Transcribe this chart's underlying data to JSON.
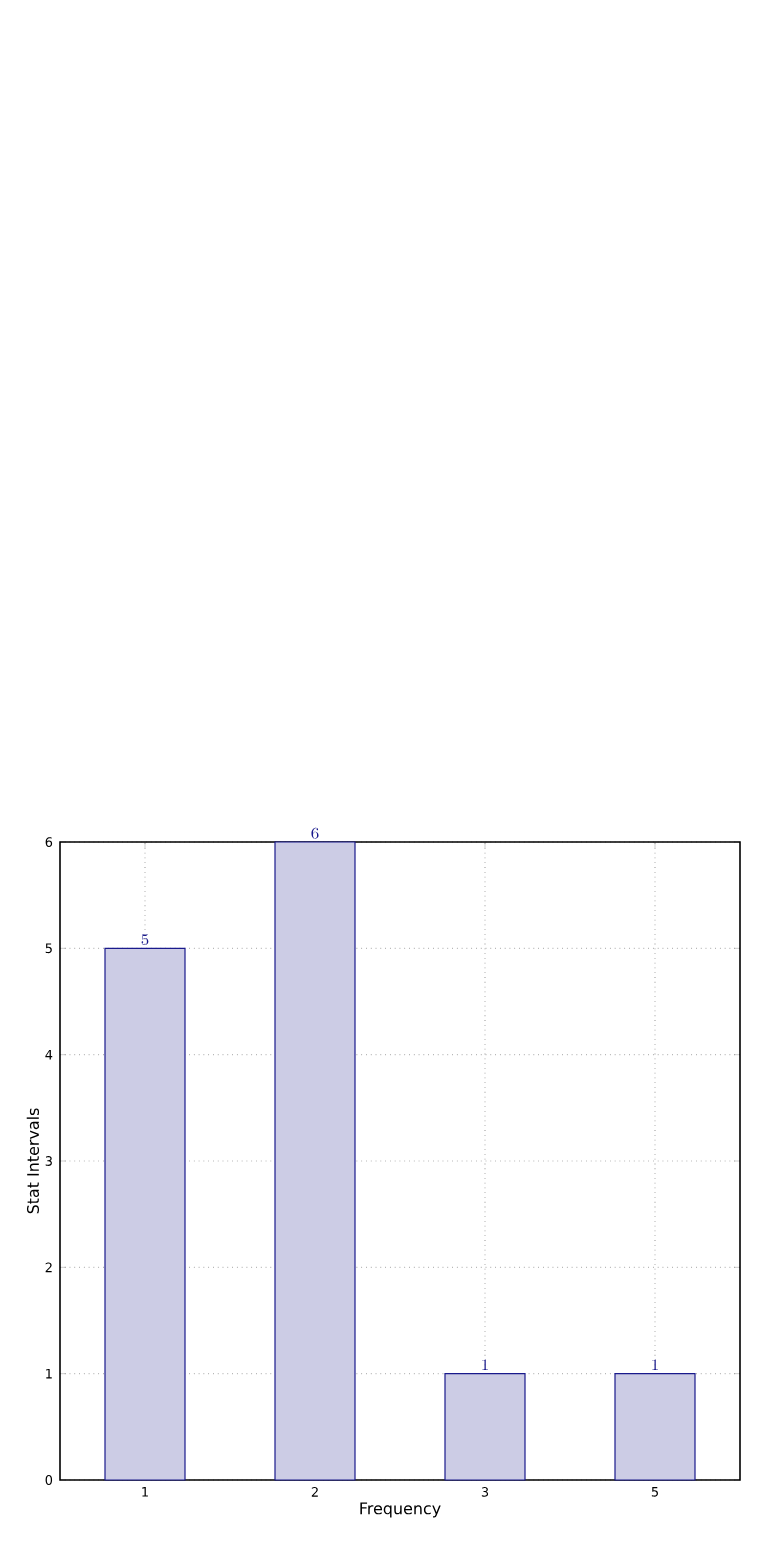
{
  "chart_data": {
    "type": "bar",
    "xlabel": "Frequency",
    "ylabel": "Stat Intervals",
    "categories": [
      "1",
      "2",
      "3",
      "5"
    ],
    "values": [
      5,
      6,
      1,
      1
    ],
    "color": "#cccce5",
    "ylim": [
      0,
      6
    ],
    "yticks": [
      0,
      1,
      2,
      3,
      4,
      5,
      6
    ],
    "grid": true,
    "data_labels": true
  }
}
